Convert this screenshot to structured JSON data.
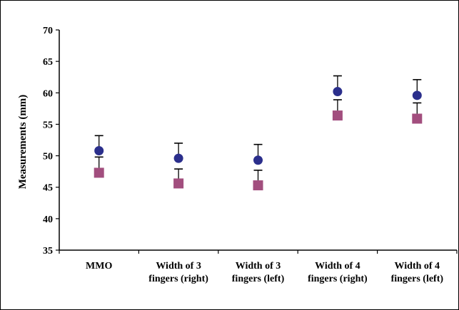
{
  "chart_data": {
    "type": "scatter",
    "title": "",
    "xlabel": "",
    "ylabel": "Measurements (mm)",
    "ylim": [
      35,
      70
    ],
    "yticks": [
      35,
      40,
      45,
      50,
      55,
      60,
      65,
      70
    ],
    "grid": false,
    "legend": "none",
    "categories": [
      [
        "MMO"
      ],
      [
        "Width of 3",
        "fingers (right)"
      ],
      [
        "Width of 3",
        "fingers (left)"
      ],
      [
        "Width of 4",
        "fingers (right)"
      ],
      [
        "Width of 4",
        "fingers (left)"
      ]
    ],
    "series": [
      {
        "marker": "circle",
        "color": "#2b2f8c",
        "values": [
          50.8,
          49.6,
          49.3,
          60.2,
          59.6
        ],
        "error_plus": [
          2.4,
          2.4,
          2.5,
          2.5,
          2.5
        ]
      },
      {
        "marker": "square",
        "color": "#a24e7e",
        "values": [
          47.3,
          45.6,
          45.3,
          56.4,
          55.9
        ],
        "error_plus": [
          2.5,
          2.3,
          2.4,
          2.5,
          2.5
        ]
      }
    ]
  }
}
